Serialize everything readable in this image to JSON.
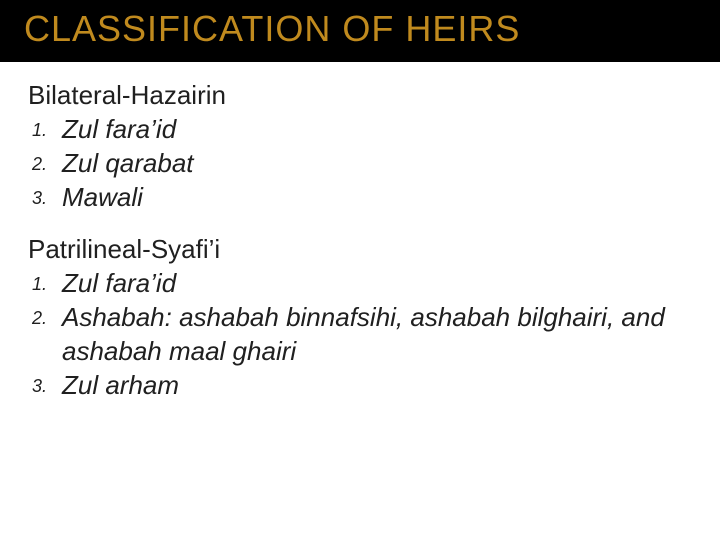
{
  "title": "CLASSIFICATION OF HEIRS",
  "title_color": "#c08a1e",
  "title_bg": "#000000",
  "body_bg": "#ffffff",
  "text_color": "#202020",
  "title_fontsize": 36,
  "body_fontsize": 26,
  "number_fontsize": 18,
  "font_family_title": "Trebuchet MS",
  "font_family_body": "Trebuchet MS",
  "sections": [
    {
      "label": "Bilateral-Hazairin",
      "items": [
        "Zul fara’id",
        "Zul qarabat",
        "Mawali"
      ]
    },
    {
      "label": "Patrilineal-Syafi’i",
      "items": [
        "Zul fara’id",
        "Ashabah: ashabah binnafsihi, ashabah bilghairi, and ashabah maal ghairi",
        "Zul arham"
      ]
    }
  ]
}
